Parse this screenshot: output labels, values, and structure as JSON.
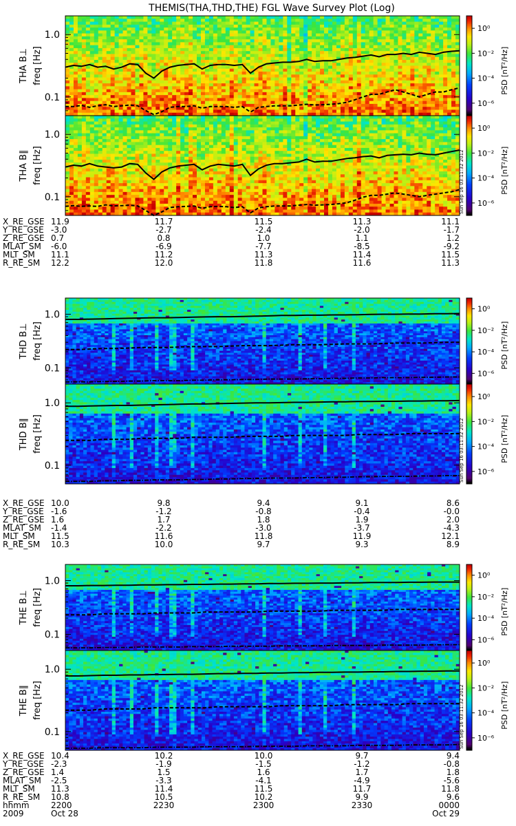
{
  "title": "THEMIS(THA,THD,THE) FGL Wave Survey Plot (Log)",
  "stamp": "Sun Sep 16 03:11:32 2012",
  "chart_data": {
    "type": "heatmap",
    "yscale": "log",
    "y_ticks": [
      "1.0",
      "0.1"
    ],
    "z_label": "PSD [nT²/Hz]",
    "z_ticks": [
      "10⁰",
      "10⁻²",
      "10⁻⁴",
      "10⁻⁶"
    ],
    "z_range": [
      1e-07,
      10
    ],
    "panels": [
      {
        "probe": "tha",
        "ylabel": "THA B⊥",
        "ylabel2": "freq [Hz]",
        "ylim": [
          0.05,
          2.0
        ],
        "level": 0.78,
        "solid": [
          0.3,
          0.32,
          0.31,
          0.33,
          0.3,
          0.31,
          0.28,
          0.3,
          0.34,
          0.33,
          0.24,
          0.2,
          0.26,
          0.3,
          0.32,
          0.33,
          0.34,
          0.28,
          0.32,
          0.33,
          0.33,
          0.32,
          0.33,
          0.24,
          0.3,
          0.34,
          0.35,
          0.36,
          0.36,
          0.37,
          0.4,
          0.37,
          0.38,
          0.38,
          0.4,
          0.42,
          0.43,
          0.45,
          0.47,
          0.44,
          0.48,
          0.48,
          0.5,
          0.48,
          0.52,
          0.5,
          0.48,
          0.52,
          0.54,
          0.55
        ],
        "dashed": [
          0.07,
          0.07,
          0.073,
          0.068,
          0.072,
          0.075,
          0.07,
          0.072,
          0.074,
          0.072,
          0.06,
          0.052,
          0.058,
          0.068,
          0.07,
          0.07,
          0.072,
          0.066,
          0.07,
          0.07,
          0.07,
          0.068,
          0.07,
          0.057,
          0.068,
          0.07,
          0.072,
          0.072,
          0.072,
          0.074,
          0.076,
          0.074,
          0.075,
          0.076,
          0.078,
          0.082,
          0.09,
          0.1,
          0.11,
          0.11,
          0.12,
          0.13,
          0.12,
          0.11,
          0.1,
          0.11,
          0.12,
          0.12,
          0.13,
          0.14
        ]
      },
      {
        "probe": "tha",
        "ylabel": "THA B∥",
        "ylabel2": "freq [Hz]",
        "ylim": [
          0.05,
          2.0
        ],
        "level": 0.78,
        "solid": [
          0.3,
          0.32,
          0.31,
          0.34,
          0.31,
          0.3,
          0.29,
          0.3,
          0.34,
          0.33,
          0.24,
          0.19,
          0.25,
          0.29,
          0.31,
          0.32,
          0.33,
          0.27,
          0.31,
          0.33,
          0.32,
          0.31,
          0.33,
          0.22,
          0.28,
          0.32,
          0.34,
          0.34,
          0.35,
          0.36,
          0.4,
          0.36,
          0.37,
          0.37,
          0.39,
          0.41,
          0.42,
          0.44,
          0.45,
          0.42,
          0.46,
          0.47,
          0.48,
          0.47,
          0.5,
          0.48,
          0.47,
          0.5,
          0.53,
          0.56
        ],
        "dashed": [
          0.07,
          0.072,
          0.07,
          0.071,
          0.07,
          0.074,
          0.071,
          0.072,
          0.073,
          0.071,
          0.06,
          0.05,
          0.057,
          0.067,
          0.069,
          0.07,
          0.071,
          0.065,
          0.069,
          0.07,
          0.069,
          0.067,
          0.069,
          0.055,
          0.066,
          0.069,
          0.071,
          0.071,
          0.071,
          0.073,
          0.075,
          0.073,
          0.074,
          0.075,
          0.077,
          0.08,
          0.088,
          0.098,
          0.105,
          0.105,
          0.11,
          0.115,
          0.11,
          0.105,
          0.1,
          0.105,
          0.11,
          0.115,
          0.12,
          0.13
        ]
      },
      {
        "probe": "thd",
        "ylabel": "THD B⊥",
        "ylabel2": "freq [Hz]",
        "ylim": [
          0.05,
          2.0
        ],
        "level": 0.3,
        "solid": [
          0.8,
          0.8,
          0.81,
          0.82,
          0.83,
          0.84,
          0.85,
          0.86,
          0.86,
          0.87,
          0.88,
          0.89,
          0.9,
          0.9,
          0.91,
          0.92,
          0.93,
          0.95,
          0.95,
          0.96,
          0.96,
          0.97,
          0.97,
          0.98,
          0.99,
          1.0,
          1.0,
          1.01,
          1.01,
          1.02,
          1.02,
          1.03
        ],
        "dashed": [
          0.22,
          0.22,
          0.225,
          0.23,
          0.23,
          0.235,
          0.24,
          0.24,
          0.24,
          0.245,
          0.25,
          0.25,
          0.25,
          0.255,
          0.26,
          0.26,
          0.26,
          0.265,
          0.27,
          0.27,
          0.27,
          0.275,
          0.28,
          0.28,
          0.28,
          0.285,
          0.29,
          0.29,
          0.29,
          0.295,
          0.3,
          0.3
        ],
        "dashdot": [
          0.055,
          0.055,
          0.055,
          0.056,
          0.056,
          0.057,
          0.057,
          0.058,
          0.058,
          0.058,
          0.059,
          0.059,
          0.06,
          0.06,
          0.061,
          0.061,
          0.062,
          0.062,
          0.062,
          0.063,
          0.063,
          0.064,
          0.064,
          0.065,
          0.065,
          0.066,
          0.066,
          0.066,
          0.067,
          0.067,
          0.068,
          0.068
        ]
      },
      {
        "probe": "thd",
        "ylabel": "THD B∥",
        "ylabel2": "freq [Hz]",
        "ylim": [
          0.05,
          2.0
        ],
        "level": 0.3,
        "solid": [
          0.88,
          0.88,
          0.89,
          0.9,
          0.91,
          0.91,
          0.92,
          0.93,
          0.94,
          0.95,
          0.96,
          0.96,
          0.97,
          0.98,
          0.99,
          1.0,
          1.0,
          1.01,
          1.02,
          1.02,
          1.03,
          1.04,
          1.04,
          1.05,
          1.05,
          1.06,
          1.06,
          1.07,
          1.07,
          1.08,
          1.08,
          1.09
        ],
        "dashed": [
          0.25,
          0.25,
          0.25,
          0.26,
          0.26,
          0.26,
          0.27,
          0.27,
          0.27,
          0.27,
          0.28,
          0.28,
          0.28,
          0.28,
          0.29,
          0.29,
          0.29,
          0.29,
          0.3,
          0.3,
          0.3,
          0.3,
          0.3,
          0.31,
          0.31,
          0.31,
          0.31,
          0.32,
          0.32,
          0.32,
          0.32,
          0.32
        ],
        "dashdot": [
          0.055,
          0.055,
          0.055,
          0.056,
          0.056,
          0.057,
          0.057,
          0.058,
          0.058,
          0.058,
          0.059,
          0.059,
          0.06,
          0.06,
          0.061,
          0.061,
          0.062,
          0.062,
          0.062,
          0.063,
          0.063,
          0.064,
          0.064,
          0.065,
          0.065,
          0.066,
          0.066,
          0.066,
          0.067,
          0.067,
          0.068,
          0.068
        ]
      },
      {
        "probe": "the",
        "ylabel": "THE B⊥",
        "ylabel2": "freq [Hz]",
        "ylim": [
          0.05,
          2.0
        ],
        "level": 0.32,
        "solid": [
          0.8,
          0.8,
          0.81,
          0.81,
          0.82,
          0.82,
          0.83,
          0.83,
          0.84,
          0.84,
          0.85,
          0.85,
          0.86,
          0.86,
          0.87,
          0.87,
          0.88,
          0.88,
          0.89,
          0.89,
          0.9,
          0.9,
          0.91,
          0.91,
          0.92,
          0.92,
          0.92,
          0.93,
          0.93,
          0.94,
          0.94,
          0.94
        ],
        "dashed": [
          0.23,
          0.23,
          0.23,
          0.24,
          0.24,
          0.24,
          0.24,
          0.25,
          0.25,
          0.25,
          0.25,
          0.26,
          0.26,
          0.26,
          0.26,
          0.26,
          0.27,
          0.27,
          0.27,
          0.27,
          0.27,
          0.28,
          0.28,
          0.28,
          0.28,
          0.28,
          0.29,
          0.29,
          0.29,
          0.29,
          0.29,
          0.29
        ],
        "dashdot": [
          0.056,
          0.056,
          0.056,
          0.057,
          0.057,
          0.057,
          0.058,
          0.058,
          0.058,
          0.058,
          0.059,
          0.059,
          0.059,
          0.06,
          0.06,
          0.06,
          0.06,
          0.061,
          0.061,
          0.061,
          0.061,
          0.062,
          0.062,
          0.062,
          0.062,
          0.063,
          0.063,
          0.063,
          0.063,
          0.064,
          0.064,
          0.064
        ]
      },
      {
        "probe": "the",
        "ylabel": "THE B∥",
        "ylabel2": "freq [Hz]",
        "ylim": [
          0.05,
          2.0
        ],
        "level": 0.3,
        "solid": [
          0.78,
          0.78,
          0.79,
          0.8,
          0.8,
          0.81,
          0.81,
          0.82,
          0.82,
          0.83,
          0.83,
          0.84,
          0.85,
          0.85,
          0.86,
          0.86,
          0.87,
          0.87,
          0.88,
          0.88,
          0.89,
          0.89,
          0.9,
          0.9,
          0.91,
          0.91,
          0.92,
          0.92,
          0.93,
          0.93,
          0.94,
          0.94
        ],
        "dashed": [
          0.22,
          0.22,
          0.22,
          0.23,
          0.23,
          0.23,
          0.23,
          0.24,
          0.24,
          0.24,
          0.24,
          0.24,
          0.25,
          0.25,
          0.25,
          0.25,
          0.25,
          0.26,
          0.26,
          0.26,
          0.26,
          0.26,
          0.27,
          0.27,
          0.27,
          0.27,
          0.27,
          0.28,
          0.28,
          0.28,
          0.28,
          0.28
        ],
        "dashdot": [
          0.054,
          0.054,
          0.054,
          0.055,
          0.055,
          0.055,
          0.055,
          0.056,
          0.056,
          0.056,
          0.056,
          0.057,
          0.057,
          0.057,
          0.057,
          0.058,
          0.058,
          0.058,
          0.058,
          0.059,
          0.059,
          0.059,
          0.059,
          0.06,
          0.06,
          0.06,
          0.06,
          0.061,
          0.061,
          0.061,
          0.061,
          0.062
        ]
      }
    ],
    "ephem_tables": [
      {
        "rows": [
          {
            "label": "X_RE_GSE",
            "values": [
              "11.9",
              "11.7",
              "11.5",
              "11.3",
              "11.1"
            ]
          },
          {
            "label": "Y_RE_GSE",
            "values": [
              "-3.0",
              "-2.7",
              "-2.4",
              "-2.0",
              "-1.7"
            ]
          },
          {
            "label": "Z_RE_GSE",
            "values": [
              "0.7",
              "0.8",
              "1.0",
              "1.1",
              "1.2"
            ]
          },
          {
            "label": "MLAT_SM",
            "values": [
              "-6.0",
              "-6.9",
              "-7.7",
              "-8.5",
              "-9.2"
            ]
          },
          {
            "label": "MLT_SM",
            "values": [
              "11.1",
              "11.2",
              "11.3",
              "11.4",
              "11.5"
            ]
          },
          {
            "label": "R_RE_SM",
            "values": [
              "12.2",
              "12.0",
              "11.8",
              "11.6",
              "11.3"
            ]
          }
        ]
      },
      {
        "rows": [
          {
            "label": "X_RE_GSE",
            "values": [
              "10.0",
              "9.8",
              "9.4",
              "9.1",
              "8.6"
            ]
          },
          {
            "label": "Y_RE_GSE",
            "values": [
              "-1.6",
              "-1.2",
              "-0.8",
              "-0.4",
              "-0.0"
            ]
          },
          {
            "label": "Z_RE_GSE",
            "values": [
              "1.6",
              "1.7",
              "1.8",
              "1.9",
              "2.0"
            ]
          },
          {
            "label": "MLAT_SM",
            "values": [
              "-1.4",
              "-2.2",
              "-3.0",
              "-3.7",
              "-4.3"
            ]
          },
          {
            "label": "MLT_SM",
            "values": [
              "11.5",
              "11.6",
              "11.8",
              "11.9",
              "12.1"
            ]
          },
          {
            "label": "R_RE_SM",
            "values": [
              "10.3",
              "10.0",
              "9.7",
              "9.3",
              "8.9"
            ]
          }
        ]
      },
      {
        "rows": [
          {
            "label": "X_RE_GSE",
            "values": [
              "10.4",
              "10.2",
              "10.0",
              "9.7",
              "9.4"
            ]
          },
          {
            "label": "Y_RE_GSE",
            "values": [
              "-2.3",
              "-1.9",
              "-1.5",
              "-1.2",
              "-0.8"
            ]
          },
          {
            "label": "Z_RE_GSE",
            "values": [
              "1.4",
              "1.5",
              "1.6",
              "1.7",
              "1.8"
            ]
          },
          {
            "label": "MLAT_SM",
            "values": [
              "-2.5",
              "-3.3",
              "-4.1",
              "-4.9",
              "-5.6"
            ]
          },
          {
            "label": "MLT_SM",
            "values": [
              "11.3",
              "11.4",
              "11.5",
              "11.7",
              "11.8"
            ]
          },
          {
            "label": "R_RE_SM",
            "values": [
              "10.8",
              "10.5",
              "10.2",
              "9.9",
              "9.6"
            ]
          },
          {
            "label": "hhmm",
            "values": [
              "2200",
              "2230",
              "2300",
              "2330",
              "0000"
            ]
          },
          {
            "label": "2009",
            "values": [
              "Oct 28",
              "",
              "",
              "",
              "Oct 29"
            ]
          }
        ]
      }
    ]
  }
}
